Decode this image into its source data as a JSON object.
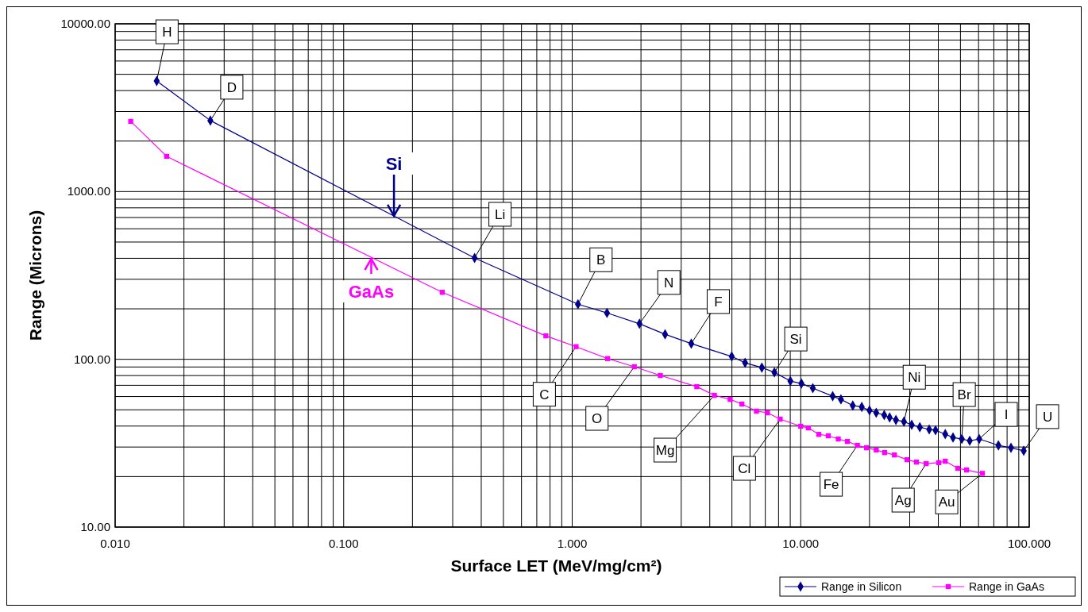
{
  "chart_data": {
    "type": "line",
    "xlabel": "Surface LET (MeV/mg/cm²)",
    "ylabel": "Range (Microns)",
    "log": "xy",
    "grid": true,
    "legend": "bottom right",
    "xlim": [
      0.01,
      100
    ],
    "xticks": [
      {
        "value": 0.01,
        "label": "0.010"
      },
      {
        "value": 0.1,
        "label": "0.100"
      },
      {
        "value": 1,
        "label": "1.000"
      },
      {
        "value": 10,
        "label": "10.000"
      },
      {
        "value": 100,
        "label": "100.000"
      }
    ],
    "ylim": [
      10,
      10000
    ],
    "yticks": [
      {
        "value": 10,
        "label": "10.00"
      },
      {
        "value": 100,
        "label": "100.00"
      },
      {
        "value": 1000,
        "label": "1000.00"
      },
      {
        "value": 10000,
        "label": "10000.00"
      }
    ],
    "series": [
      {
        "name": "Range in Silicon",
        "color": "#00008b",
        "marker": "diamond",
        "x": [
          0.0152,
          0.0261,
          0.374,
          1.06,
          1.42,
          1.97,
          2.55,
          3.32,
          4.99,
          5.71,
          6.76,
          7.67,
          9.01,
          10.07,
          11.3,
          13.8,
          15.0,
          16.9,
          18.5,
          20.0,
          21.4,
          23.2,
          24.5,
          26.1,
          28.3,
          30.6,
          33.2,
          36.5,
          38.9,
          42.9,
          46.4,
          50.7,
          54.9,
          60.4,
          73.3,
          83.2,
          94.6
        ],
        "values": [
          4560,
          2650,
          402,
          213,
          189,
          163,
          141,
          124,
          104,
          95.3,
          89.3,
          83.6,
          74.2,
          71.8,
          67.3,
          60.3,
          57.7,
          53.0,
          52.0,
          49.6,
          48.0,
          46.5,
          45.0,
          43.5,
          42.5,
          40.7,
          39.4,
          38.2,
          37.8,
          35.8,
          34.2,
          33.5,
          32.7,
          33.5,
          30.7,
          29.7,
          28.5
        ]
      },
      {
        "name": "Range in GaAs",
        "color": "#ff00ff",
        "marker": "square",
        "x": [
          0.0117,
          0.0168,
          0.27,
          0.767,
          1.04,
          1.43,
          1.87,
          2.43,
          3.51,
          4.19,
          4.91,
          5.53,
          6.4,
          7.15,
          8.13,
          10.0,
          10.8,
          12.0,
          13.2,
          14.6,
          16.0,
          17.7,
          19.4,
          21.4,
          23.3,
          25.7,
          29.2,
          32.1,
          35.4,
          40.2,
          42.9,
          48.7,
          53.2,
          62.4
        ],
        "values": [
          2620,
          1622,
          251,
          138,
          119,
          101,
          90.3,
          80.1,
          68.7,
          61.0,
          57.7,
          54.1,
          49.1,
          48.0,
          44.0,
          39.9,
          39.0,
          35.7,
          35.0,
          33.5,
          32.4,
          30.7,
          29.7,
          28.8,
          27.8,
          26.9,
          25.2,
          24.4,
          23.9,
          24.2,
          24.7,
          22.4,
          21.9,
          20.9
        ]
      }
    ],
    "annotations": [
      {
        "text": "Si",
        "x": 0.166,
        "y": 716
      },
      {
        "text": "GaAs",
        "x": 0.132,
        "y": 397
      },
      {
        "text": "H",
        "x": 0.0152,
        "y": 4560
      },
      {
        "text": "D",
        "x": 0.0261,
        "y": 2650
      },
      {
        "text": "Li",
        "x": 0.374,
        "y": 402
      },
      {
        "text": "B",
        "x": 1.06,
        "y": 213
      },
      {
        "text": "C",
        "x": 1.04,
        "y": 119
      },
      {
        "text": "N",
        "x": 1.97,
        "y": 163
      },
      {
        "text": "O",
        "x": 1.87,
        "y": 90.3
      },
      {
        "text": "F",
        "x": 3.32,
        "y": 124
      },
      {
        "text": "Mg",
        "x": 4.19,
        "y": 61.0
      },
      {
        "text": "Si",
        "x": 7.67,
        "y": 83.6
      },
      {
        "text": "Cl",
        "x": 8.13,
        "y": 44.0
      },
      {
        "text": "Ni",
        "x": 28.3,
        "y": 42.5
      },
      {
        "text": "Fe",
        "x": 17.7,
        "y": 30.7
      },
      {
        "text": "Br",
        "x": 50.7,
        "y": 33.5
      },
      {
        "text": "Ag",
        "x": 35.4,
        "y": 23.9
      },
      {
        "text": "I",
        "x": 60.4,
        "y": 33.5
      },
      {
        "text": "Au",
        "x": 62.4,
        "y": 20.9
      },
      {
        "text": "U",
        "x": 94.6,
        "y": 28.5
      }
    ]
  }
}
